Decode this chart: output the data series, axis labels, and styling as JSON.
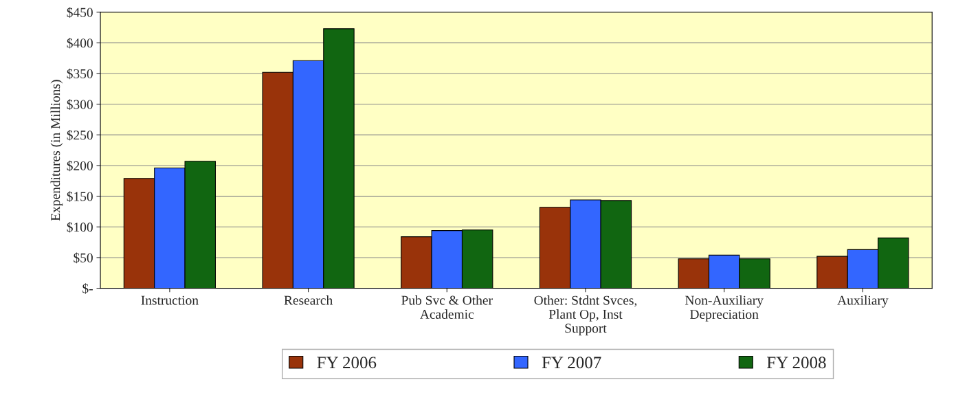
{
  "chart_data": {
    "type": "bar",
    "ylabel": "Expenditures (in Millions)",
    "categories": [
      "Instruction",
      "Research",
      "Pub Svc & Other\nAcademic",
      "Other: Stdnt Svces,\nPlant Op, Inst\nSupport",
      "Non-Auxiliary\nDepreciation",
      "Auxiliary"
    ],
    "series": [
      {
        "name": "FY 2006",
        "color": "#99330a",
        "values": [
          179,
          352,
          84,
          132,
          48,
          52
        ]
      },
      {
        "name": "FY 2007",
        "color": "#3366ff",
        "values": [
          196,
          371,
          94,
          144,
          54,
          63
        ]
      },
      {
        "name": "FY 2008",
        "color": "#116611",
        "values": [
          207,
          423,
          95,
          143,
          48,
          82
        ]
      }
    ],
    "ylim": [
      0,
      450
    ],
    "yticks": [
      {
        "value": 0,
        "label": "$-"
      },
      {
        "value": 50,
        "label": "$50"
      },
      {
        "value": 100,
        "label": "$100"
      },
      {
        "value": 150,
        "label": "$150"
      },
      {
        "value": 200,
        "label": "$200"
      },
      {
        "value": 250,
        "label": "$250"
      },
      {
        "value": 300,
        "label": "$300"
      },
      {
        "value": 350,
        "label": "$350"
      },
      {
        "value": 400,
        "label": "$400"
      },
      {
        "value": 450,
        "label": "$450"
      }
    ],
    "grid": "y",
    "legend": "bottom"
  }
}
